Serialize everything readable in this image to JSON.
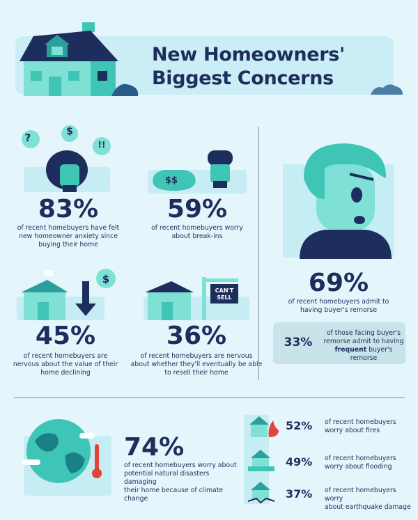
{
  "title": {
    "line1": "New Homeowners'",
    "line2": "Biggest Concerns"
  },
  "stats": {
    "anxiety": {
      "percent": "83%",
      "lines": [
        "of recent homebuyers have felt",
        "new homeowner anxiety since",
        "buying their home"
      ]
    },
    "breakins": {
      "percent": "59%",
      "lines": [
        "of recent homebuyers worry",
        "about break-ins"
      ],
      "bag_label": "$$"
    },
    "value": {
      "percent": "45%",
      "lines": [
        "of recent homebuyers are",
        "nervous about the value of their",
        "home declining"
      ],
      "bubble": "$"
    },
    "resell": {
      "percent": "36%",
      "lines": [
        "of recent homebuyers are nervous",
        "about whether they'll eventually be able",
        "to resell their home"
      ],
      "sign_line1": "CAN'T",
      "sign_line2": "SELL"
    },
    "remorse": {
      "percent": "69%",
      "lines": [
        "of recent homebuyers admit to",
        "having buyer's remorse"
      ]
    },
    "frequent": {
      "percent": "33%",
      "line1": "of those facing buyer's",
      "line2": "remorse admit to having",
      "line3_bold": "frequent",
      "line3_rest": " buyer's remorse"
    },
    "climate": {
      "percent": "74%",
      "lines": [
        "of recent homebuyers worry about",
        "potential natural disasters damaging",
        "their home because of climate change"
      ]
    },
    "fires": {
      "percent": "52%",
      "lines": [
        "of recent homebuyers",
        "worry about fires"
      ]
    },
    "flooding": {
      "percent": "49%",
      "lines": [
        "of recent homebuyers",
        "worry about flooding"
      ]
    },
    "earthquake": {
      "percent": "37%",
      "lines": [
        "of recent homebuyers worry",
        "about earthquake damage"
      ]
    }
  },
  "bubbles": {
    "question": "?",
    "dollar": "$",
    "exclaim": "!!"
  },
  "colors": {
    "background": "#e4f6fb",
    "navy": "#1d2e5c",
    "teal": "#3fc5b6",
    "light_teal": "#7fe0d6",
    "panel": "#c6ecf4",
    "red": "#e0443a"
  }
}
